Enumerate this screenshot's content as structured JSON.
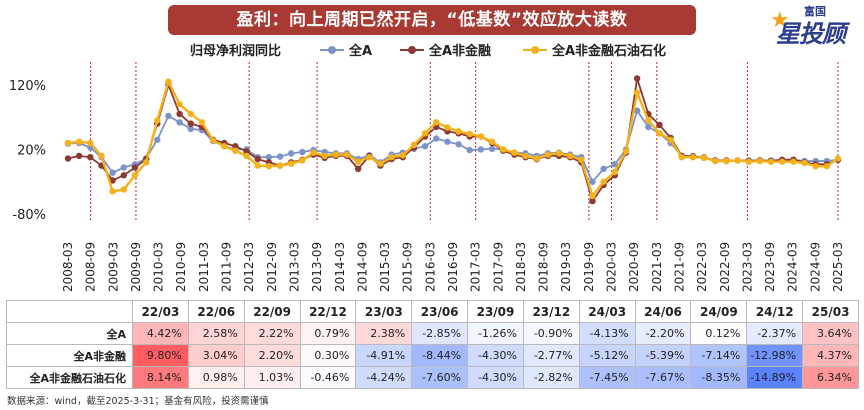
{
  "title": "盈利：向上周期已然开启，“低基数”效应放大读数",
  "logo": {
    "small_text": "富国",
    "big_text": "星投顾",
    "star_icon": "star-icon"
  },
  "chart_data": {
    "type": "line",
    "title": "",
    "xlabel": "",
    "ylabel": "",
    "ylim": [
      -80,
      140
    ],
    "yticks": [
      "120%",
      "20%",
      "-80%"
    ],
    "legend_placement": "top",
    "legend_title": "归母净利润同比",
    "x_ticks": [
      "2008-03",
      "2008-09",
      "2009-03",
      "2009-09",
      "2010-03",
      "2010-09",
      "2011-03",
      "2011-09",
      "2012-03",
      "2012-09",
      "2013-03",
      "2013-09",
      "2014-03",
      "2014-09",
      "2015-03",
      "2015-09",
      "2016-03",
      "2016-09",
      "2017-03",
      "2017-09",
      "2018-03",
      "2018-09",
      "2019-03",
      "2019-09",
      "2020-03",
      "2020-09",
      "2021-03",
      "2021-09",
      "2022-03",
      "2022-09",
      "2023-03",
      "2023-09",
      "2024-03",
      "2024-09",
      "2025-03"
    ],
    "vlines": [
      "2008-09",
      "2009-09",
      "2012-03",
      "2013-09",
      "2016-03",
      "2017-03",
      "2019-09",
      "2020-03",
      "2021-03",
      "2023-03",
      "2025-03"
    ],
    "series": [
      {
        "name": "全A",
        "color": "#7b93c9",
        "values": [
          29,
          30,
          23,
          8,
          -16,
          -8,
          -3,
          6,
          35,
          72,
          62,
          52,
          50,
          33,
          25,
          20,
          20,
          8,
          8,
          9,
          14,
          16,
          19,
          16,
          14,
          14,
          5,
          11,
          0,
          12,
          15,
          21,
          25,
          37,
          32,
          28,
          19,
          20,
          21,
          20,
          15,
          14,
          10,
          14,
          15,
          12,
          8,
          -30,
          -10,
          -3,
          20,
          80,
          55,
          45,
          30,
          10,
          10,
          8,
          3,
          2,
          3,
          3,
          3,
          3,
          4,
          4,
          2,
          2,
          2,
          4
        ]
      },
      {
        "name": "全A非金融",
        "color": "#8b3a33",
        "values": [
          6,
          10,
          8,
          -5,
          -28,
          -20,
          -8,
          5,
          60,
          120,
          75,
          60,
          55,
          35,
          30,
          25,
          17,
          5,
          0,
          -5,
          0,
          4,
          12,
          7,
          10,
          10,
          -10,
          10,
          -5,
          5,
          8,
          23,
          40,
          55,
          48,
          45,
          40,
          40,
          30,
          18,
          12,
          8,
          5,
          10,
          10,
          8,
          0,
          -60,
          -35,
          -20,
          15,
          130,
          75,
          58,
          38,
          10,
          9,
          7,
          3,
          3,
          3,
          2,
          3,
          2,
          4,
          4,
          0,
          -3,
          -3,
          4
        ]
      },
      {
        "name": "全A非金融石油石化",
        "color": "#f5b11b",
        "values": [
          30,
          32,
          30,
          10,
          -45,
          -42,
          -20,
          0,
          65,
          125,
          90,
          75,
          62,
          34,
          25,
          18,
          10,
          -5,
          -6,
          -5,
          -2,
          3,
          15,
          10,
          12,
          12,
          1,
          8,
          -2,
          8,
          11,
          27,
          45,
          62,
          54,
          48,
          44,
          40,
          32,
          20,
          15,
          10,
          6,
          12,
          14,
          10,
          4,
          -52,
          -30,
          -15,
          17,
          108,
          65,
          45,
          35,
          8,
          8,
          7,
          2,
          2,
          3,
          1,
          2,
          1,
          1,
          1,
          -1,
          -6,
          -6,
          6
        ]
      }
    ]
  },
  "table": {
    "headers": [
      "",
      "22/03",
      "22/06",
      "22/09",
      "22/12",
      "23/03",
      "23/06",
      "23/09",
      "23/12",
      "24/03",
      "24/06",
      "24/09",
      "24/12",
      "25/03"
    ],
    "rows": [
      {
        "label": "全A",
        "values": [
          "4.42%",
          "2.58%",
          "2.22%",
          "0.79%",
          "2.38%",
          "-2.85%",
          "-1.26%",
          "-0.90%",
          "-4.13%",
          "-2.20%",
          "0.12%",
          "-2.37%",
          "3.64%"
        ]
      },
      {
        "label": "全A非金融",
        "values": [
          "9.80%",
          "3.04%",
          "2.20%",
          "0.30%",
          "-4.91%",
          "-8.44%",
          "-4.30%",
          "-2.77%",
          "-5.12%",
          "-5.39%",
          "-7.14%",
          "-12.98%",
          "4.37%"
        ]
      },
      {
        "label": "全A非金融石油石化",
        "values": [
          "8.14%",
          "0.98%",
          "1.03%",
          "-0.46%",
          "-4.24%",
          "-7.60%",
          "-4.30%",
          "-2.82%",
          "-7.45%",
          "-7.67%",
          "-8.35%",
          "-14.89%",
          "6.34%"
        ]
      }
    ]
  },
  "source": "数据来源：wind，截至2025-3-31；基金有风险，投资需谨慎"
}
